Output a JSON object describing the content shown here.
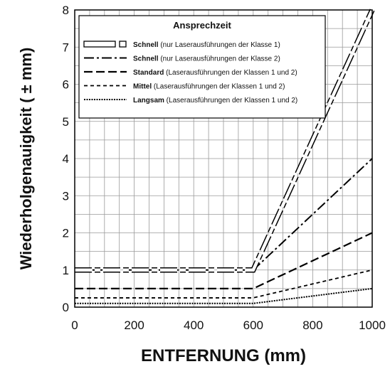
{
  "chart_data": {
    "type": "line",
    "xlabel": "ENTFERNUNG (mm)",
    "ylabel": "Wiederholgenauigkeit ( ± mm)",
    "xlim": [
      0,
      1000
    ],
    "ylim": [
      0,
      8
    ],
    "xticks": [
      0,
      200,
      400,
      600,
      800,
      1000
    ],
    "yticks": [
      0,
      1,
      2,
      3,
      4,
      5,
      6,
      7,
      8
    ],
    "grid": true,
    "legend": {
      "title": "Ansprechzeit",
      "placement": "top-center",
      "entries": [
        {
          "name": "Schnell",
          "desc": "(nur Laserausführungen der Klasse 1)"
        },
        {
          "name": "Schnell",
          "desc": "(nur Laserausführungen der Klasse 2)"
        },
        {
          "name": "Standard",
          "desc": "(Laserausführungen der Klassen 1 und 2)"
        },
        {
          "name": "Mittel",
          "desc": "(Laserausführungen der Klassen 1 und 2)"
        },
        {
          "name": "Langsam",
          "desc": "(Laserausführungen der Klassen 1 und 2)"
        }
      ]
    },
    "series": [
      {
        "name": "Schnell",
        "style": "hollow-dash",
        "x": [
          0,
          600,
          1000
        ],
        "y": [
          1,
          1,
          8
        ]
      },
      {
        "name": "Schnell",
        "style": "dash-dot",
        "x": [
          0,
          600,
          1000
        ],
        "y": [
          1,
          1,
          4
        ]
      },
      {
        "name": "Standard",
        "style": "long-dash",
        "x": [
          0,
          600,
          1000
        ],
        "y": [
          0.5,
          0.5,
          2
        ]
      },
      {
        "name": "Mittel",
        "style": "short-dash",
        "x": [
          0,
          600,
          1000
        ],
        "y": [
          0.25,
          0.25,
          1
        ]
      },
      {
        "name": "Langsam",
        "style": "dotted",
        "x": [
          0,
          600,
          1000
        ],
        "y": [
          0.1,
          0.1,
          0.5
        ]
      }
    ]
  }
}
